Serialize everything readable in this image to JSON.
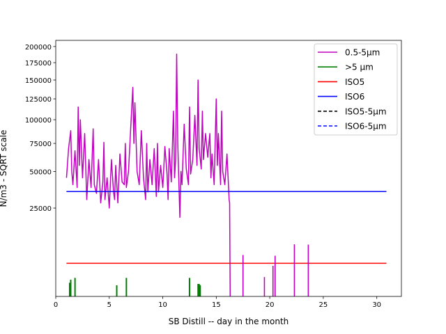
{
  "chart_data": {
    "type": "line",
    "xlabel": "SB Distill -- day in the month",
    "ylabel": "N/m3 - SQRT scale",
    "y_scale": "sqrt",
    "xlim": [
      0,
      32.3
    ],
    "ylim": [
      0,
      210000
    ],
    "x_ticks": [
      0,
      5,
      10,
      15,
      20,
      25,
      30
    ],
    "y_ticks": [
      25000,
      50000,
      75000,
      100000,
      125000,
      150000,
      175000,
      200000
    ],
    "legend_position": "upper right",
    "series": [
      {
        "name": "0.5-5µm",
        "color": "#bf00bf",
        "style": "solid",
        "x": [
          1.0,
          1.2,
          1.4,
          1.5,
          1.6,
          1.8,
          2.0,
          2.1,
          2.2,
          2.3,
          2.5,
          2.7,
          2.9,
          3.1,
          3.3,
          3.5,
          3.6,
          3.8,
          4.0,
          4.2,
          4.4,
          4.5,
          4.6,
          4.8,
          5.0,
          5.2,
          5.4,
          5.5,
          5.6,
          5.8,
          6.0,
          6.2,
          6.4,
          6.5,
          6.6,
          6.8,
          7.0,
          7.2,
          7.3,
          7.4,
          7.6,
          7.8,
          8.0,
          8.2,
          8.4,
          8.5,
          8.6,
          8.8,
          9.0,
          9.2,
          9.4,
          9.5,
          9.6,
          9.8,
          10.0,
          10.2,
          10.4,
          10.5,
          10.6,
          10.8,
          11.0,
          11.1,
          11.2,
          11.3,
          11.4,
          11.6,
          11.7,
          11.8,
          12.0,
          12.2,
          12.4,
          12.5,
          12.6,
          12.8,
          13.0,
          13.2,
          13.3,
          13.4,
          13.6,
          13.7,
          13.8,
          14.0,
          14.2,
          14.4,
          14.5,
          14.6,
          14.8,
          15.0,
          15.1,
          15.2,
          15.4,
          15.5,
          15.6,
          15.8,
          16.0,
          16.2,
          16.25,
          16.3
        ],
        "y": [
          45000,
          70000,
          88000,
          50000,
          40000,
          68000,
          38000,
          115000,
          55000,
          100000,
          45000,
          85000,
          30000,
          60000,
          38000,
          90000,
          40000,
          34000,
          60000,
          28000,
          42000,
          76000,
          30000,
          45000,
          25000,
          60000,
          35000,
          30000,
          55000,
          28000,
          65000,
          42000,
          40000,
          75000,
          38000,
          50000,
          90000,
          140000,
          75000,
          120000,
          50000,
          40000,
          88000,
          45000,
          30000,
          75000,
          35000,
          60000,
          40000,
          70000,
          32000,
          75000,
          35000,
          55000,
          38000,
          72000,
          48000,
          30000,
          70000,
          42000,
          110000,
          45000,
          60000,
          188000,
          75000,
          20000,
          50000,
          40000,
          95000,
          52000,
          40000,
          115000,
          48000,
          60000,
          105000,
          55000,
          150000,
          70000,
          52000,
          110000,
          60000,
          85000,
          62000,
          85000,
          45000,
          65000,
          40000,
          125000,
          55000,
          85000,
          40000,
          110000,
          50000,
          40000,
          65000,
          30000,
          28000,
          0
        ]
      },
      {
        "name": ">5 µm",
        "color": "#008000",
        "style": "solid",
        "x": [
          1.3,
          1.4,
          1.8,
          5.7,
          6.6,
          12.5,
          13.3,
          13.4,
          13.5
        ],
        "y": [
          600,
          900,
          1100,
          400,
          1100,
          1100,
          500,
          500,
          400
        ]
      },
      {
        "name": "ISO5",
        "color": "#ff0000",
        "style": "solid",
        "x": [
          1.0,
          30.9
        ],
        "y": [
          3520,
          3520
        ]
      },
      {
        "name": "ISO6",
        "color": "#0000ff",
        "style": "solid",
        "x": [
          1.0,
          30.9
        ],
        "y": [
          35200,
          35200
        ]
      },
      {
        "name": "ISO5-5µm",
        "color": "#000000",
        "style": "dashed",
        "x": [],
        "y": []
      },
      {
        "name": "ISO6-5µm",
        "color": "#0000ff",
        "style": "dashed",
        "x": [],
        "y": []
      },
      {
        "name": "",
        "color": "#bf00bf",
        "style": "spikes",
        "x": [
          17.5,
          19.5,
          20.3,
          20.5,
          22.3,
          23.6
        ],
        "y": [
          5500,
          1200,
          3000,
          5300,
          8700,
          8600
        ]
      }
    ]
  }
}
